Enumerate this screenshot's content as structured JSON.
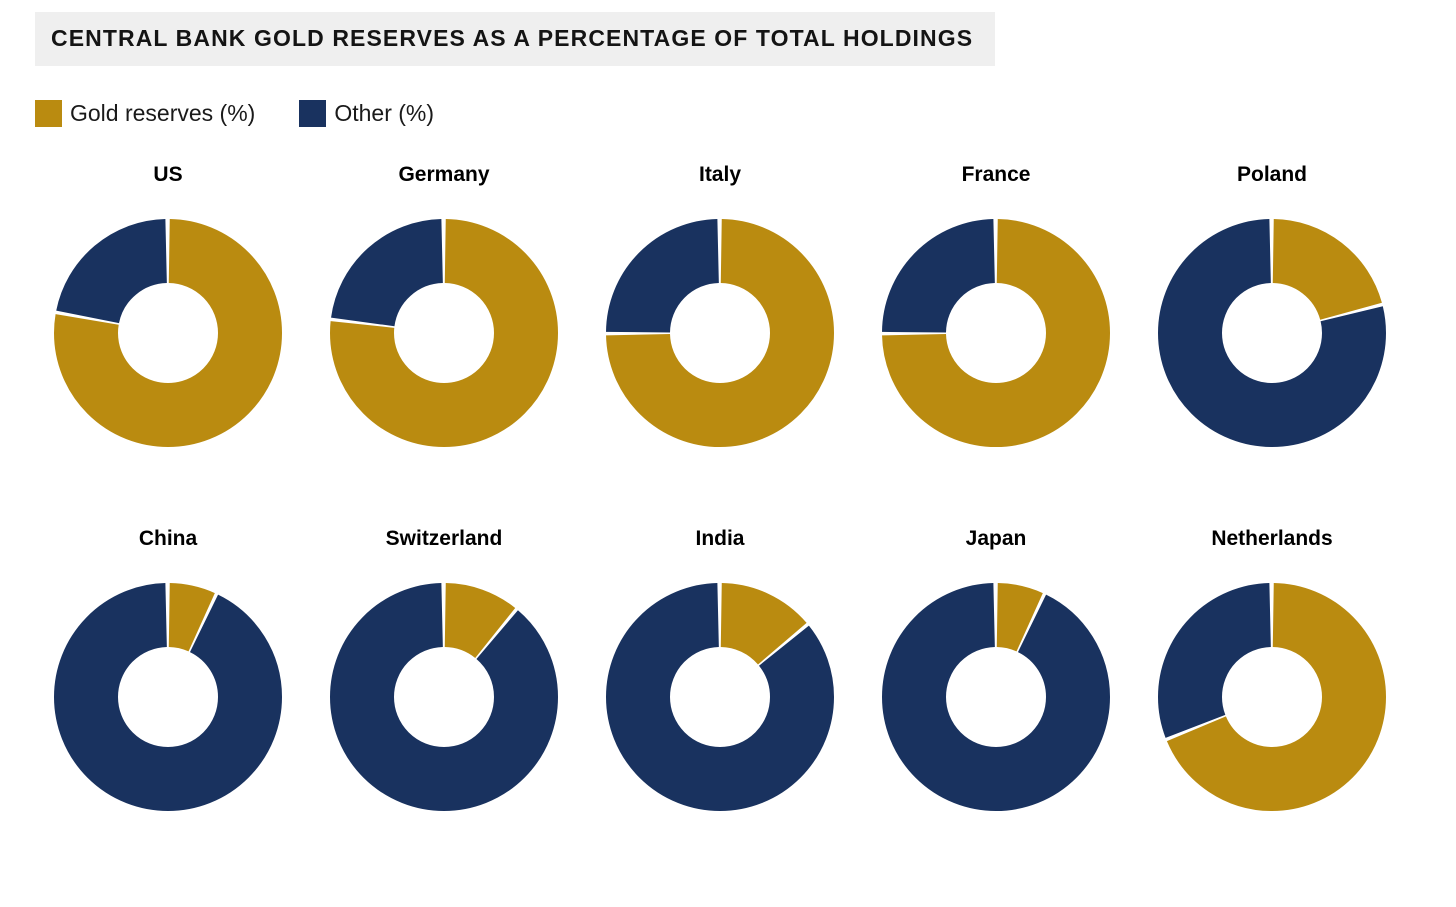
{
  "header": {
    "title": "CENTRAL BANK GOLD RESERVES AS A PERCENTAGE OF TOTAL HOLDINGS"
  },
  "legend": {
    "items": [
      {
        "label": "Gold reserves (%)",
        "color": "#BA8B10"
      },
      {
        "label": "Other (%)",
        "color": "#19325F"
      }
    ]
  },
  "chart_data": {
    "type": "pie",
    "variant": "donut-small-multiples",
    "title": "CENTRAL BANK GOLD RESERVES AS A PERCENTAGE OF TOTAL HOLDINGS",
    "legend": [
      "Gold reserves (%)",
      "Other (%)"
    ],
    "legend_position": "top-left",
    "colors": {
      "gold_reserves": "#BA8B10",
      "other": "#19325F"
    },
    "donut_hole_ratio": 0.44,
    "start_angle_deg": 0,
    "direction": "clockwise",
    "rows": [
      [
        "US",
        "Germany",
        "Italy",
        "France",
        "Poland"
      ],
      [
        "China",
        "Switzerland",
        "India",
        "Japan",
        "Netherlands"
      ]
    ],
    "series": [
      {
        "name": "US",
        "gold_reserves_pct": 78,
        "other_pct": 22
      },
      {
        "name": "Germany",
        "gold_reserves_pct": 77,
        "other_pct": 23
      },
      {
        "name": "Italy",
        "gold_reserves_pct": 75,
        "other_pct": 25
      },
      {
        "name": "France",
        "gold_reserves_pct": 75,
        "other_pct": 25
      },
      {
        "name": "Poland",
        "gold_reserves_pct": 21,
        "other_pct": 79
      },
      {
        "name": "China",
        "gold_reserves_pct": 7,
        "other_pct": 93
      },
      {
        "name": "Switzerland",
        "gold_reserves_pct": 11,
        "other_pct": 89
      },
      {
        "name": "India",
        "gold_reserves_pct": 14,
        "other_pct": 86
      },
      {
        "name": "Japan",
        "gold_reserves_pct": 7,
        "other_pct": 93
      },
      {
        "name": "Netherlands",
        "gold_reserves_pct": 69,
        "other_pct": 31
      }
    ]
  }
}
